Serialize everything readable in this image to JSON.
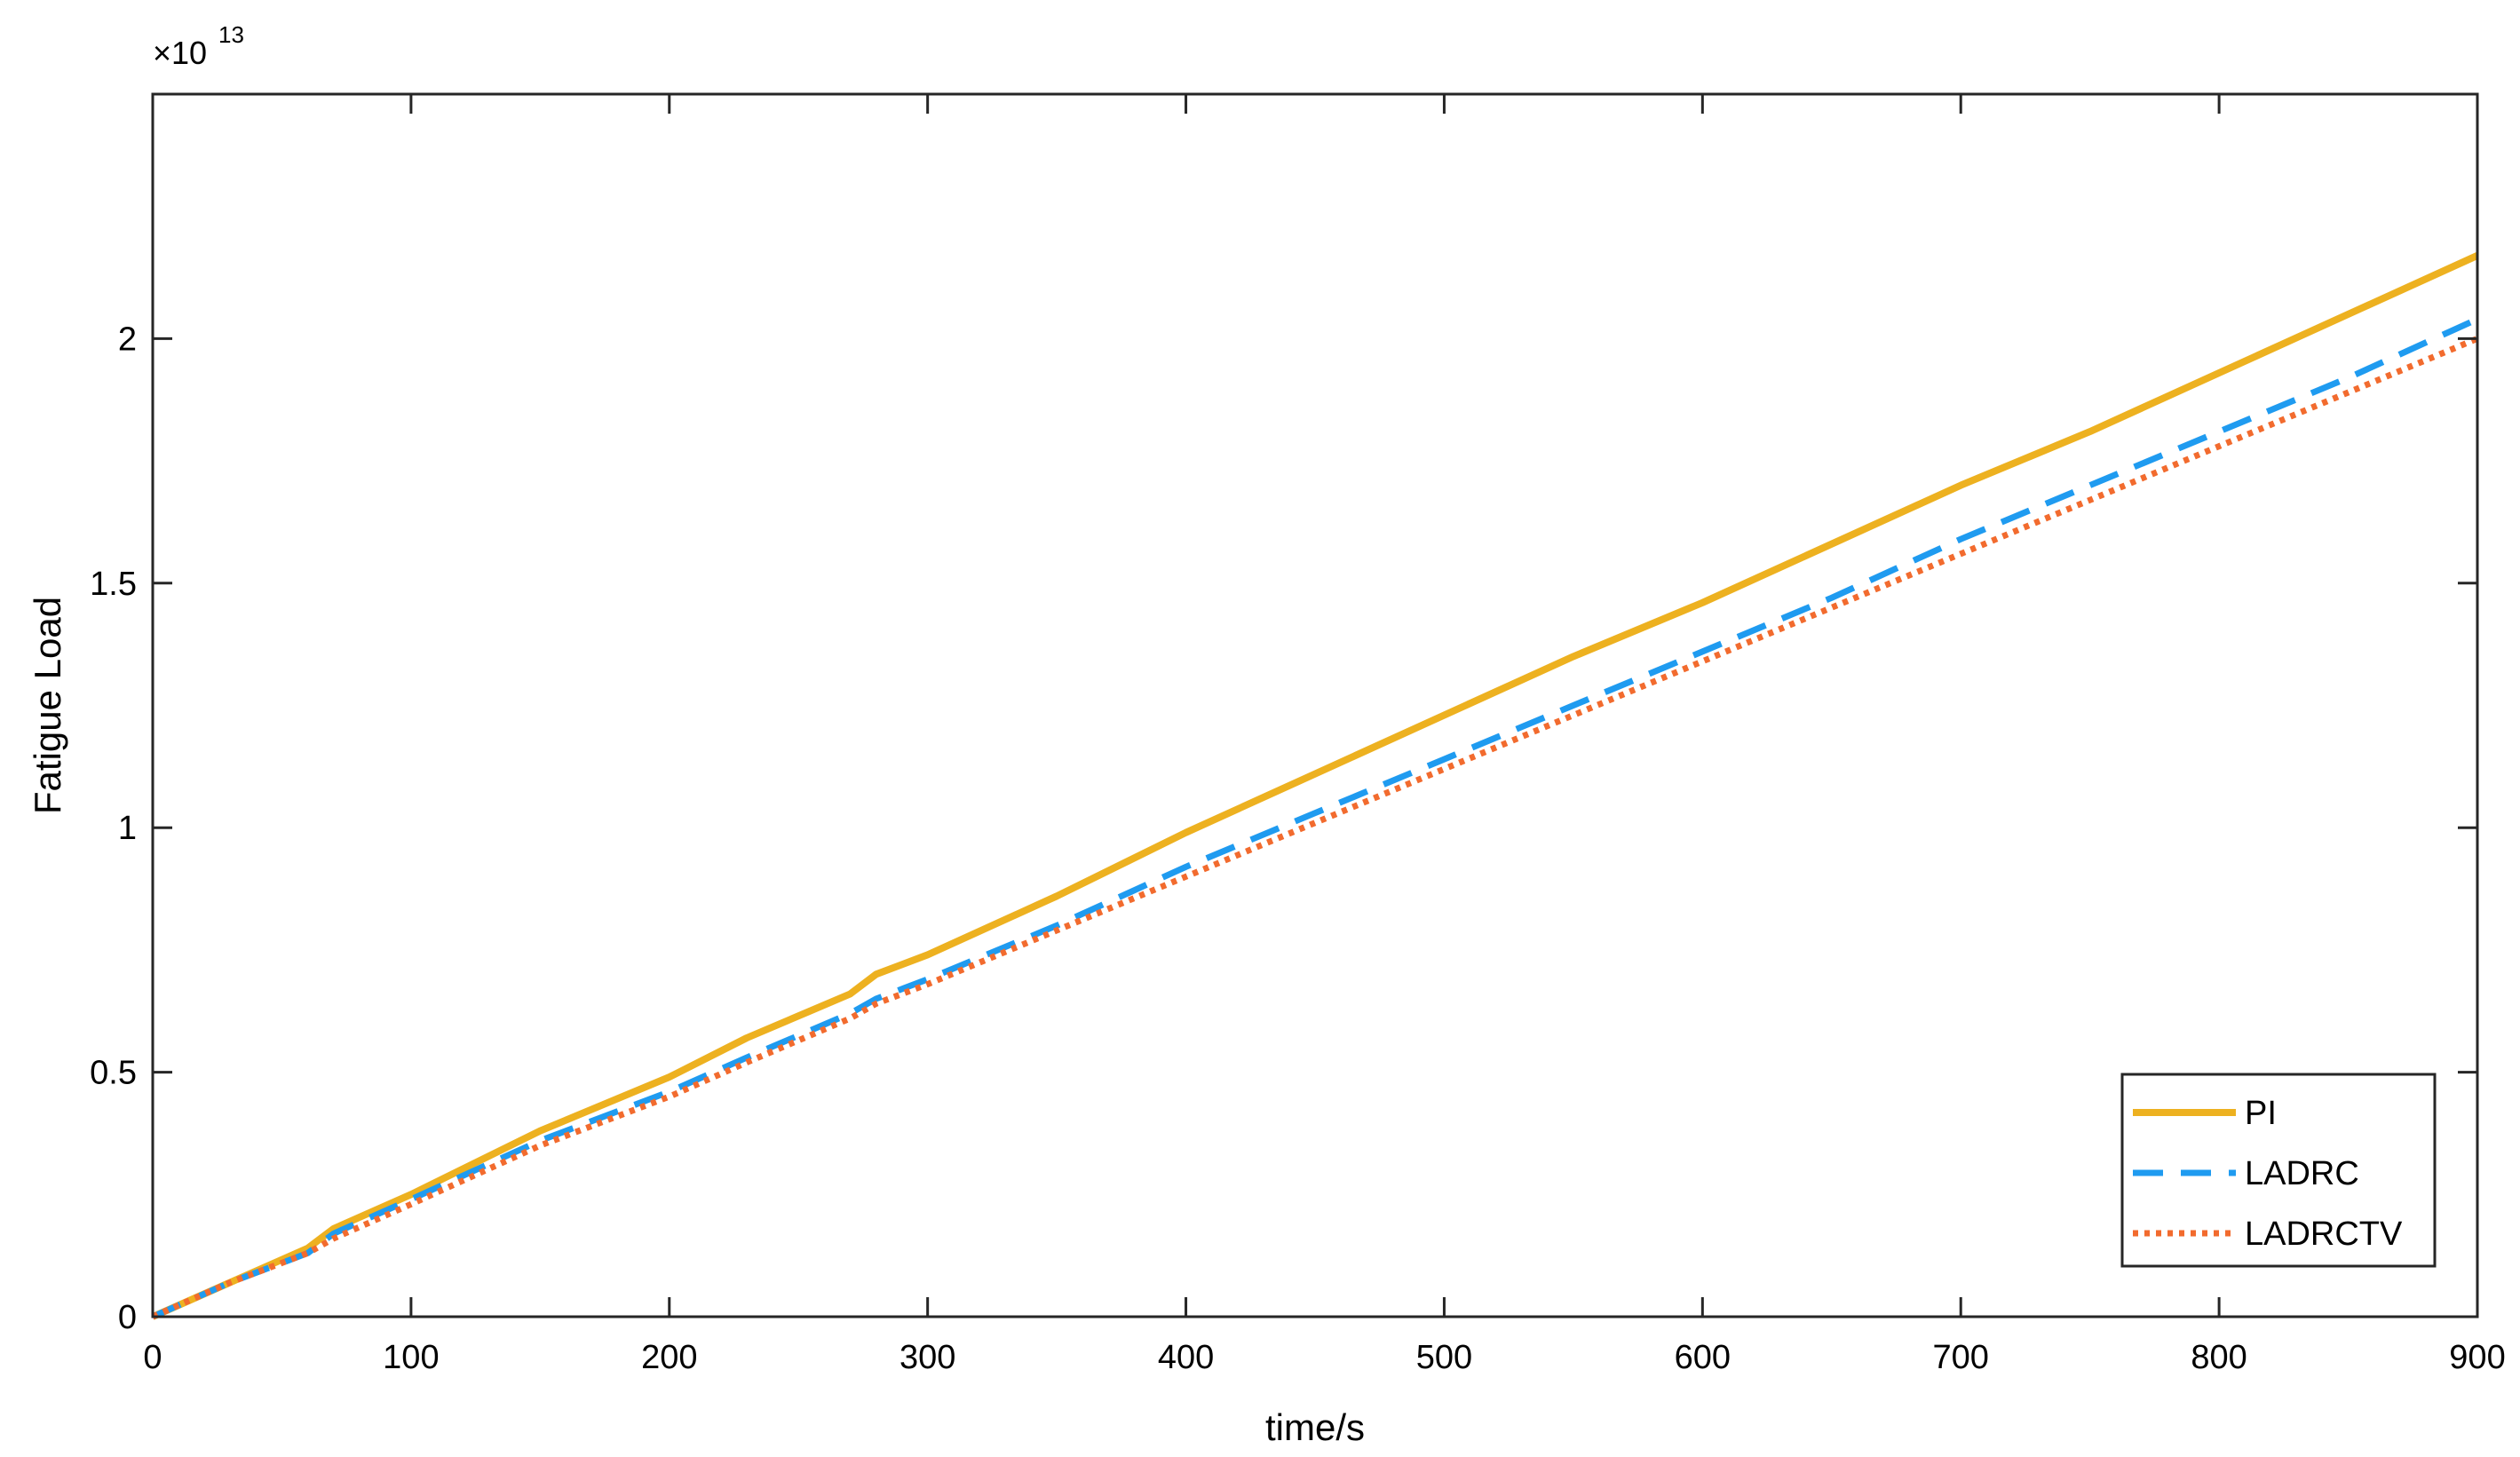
{
  "chart_data": {
    "type": "line",
    "title": "",
    "xlabel": "time/s",
    "ylabel": "Fatigue Load",
    "xlim": [
      0,
      900
    ],
    "ylim": [
      0,
      2.5
    ],
    "y_multiplier_label": "×10",
    "y_multiplier_exponent": "13",
    "x_ticks": [
      0,
      100,
      200,
      300,
      400,
      500,
      600,
      700,
      800,
      900
    ],
    "x_tick_labels": [
      "0",
      "100",
      "200",
      "300",
      "400",
      "500",
      "600",
      "700",
      "800",
      "900"
    ],
    "y_ticks": [
      0,
      0.5,
      1,
      1.5,
      2
    ],
    "y_tick_labels": [
      "0",
      "0.5",
      "1",
      "1.5",
      "2"
    ],
    "grid": false,
    "legend_position": "bottom-right",
    "series": [
      {
        "name": "PI",
        "color": "#EDB120",
        "style": "solid",
        "x": [
          0,
          30,
          60,
          70,
          100,
          150,
          200,
          230,
          270,
          280,
          300,
          350,
          400,
          450,
          500,
          550,
          600,
          650,
          700,
          750,
          800,
          850,
          900
        ],
        "y": [
          0,
          0.07,
          0.14,
          0.18,
          0.25,
          0.38,
          0.49,
          0.57,
          0.66,
          0.7,
          0.74,
          0.86,
          0.99,
          1.11,
          1.23,
          1.35,
          1.46,
          1.58,
          1.7,
          1.81,
          1.93,
          2.05,
          2.17
        ]
      },
      {
        "name": "LADRC",
        "color": "#1F9BF0",
        "style": "dashed",
        "x": [
          0,
          30,
          60,
          70,
          100,
          150,
          200,
          230,
          270,
          280,
          300,
          350,
          400,
          450,
          500,
          550,
          600,
          650,
          700,
          750,
          800,
          850,
          900
        ],
        "y": [
          0,
          0.07,
          0.13,
          0.17,
          0.24,
          0.36,
          0.46,
          0.53,
          0.62,
          0.65,
          0.69,
          0.8,
          0.92,
          1.03,
          1.14,
          1.25,
          1.36,
          1.47,
          1.59,
          1.7,
          1.81,
          1.92,
          2.04
        ]
      },
      {
        "name": "LADRCTV",
        "color": "#F26B2E",
        "style": "dotted",
        "x": [
          0,
          30,
          60,
          70,
          100,
          150,
          200,
          230,
          270,
          280,
          300,
          350,
          400,
          450,
          500,
          550,
          600,
          650,
          700,
          750,
          800,
          850,
          900
        ],
        "y": [
          0,
          0.07,
          0.13,
          0.16,
          0.23,
          0.35,
          0.45,
          0.52,
          0.61,
          0.64,
          0.68,
          0.79,
          0.9,
          1.01,
          1.12,
          1.23,
          1.34,
          1.45,
          1.56,
          1.67,
          1.78,
          1.89,
          2.0
        ]
      }
    ]
  }
}
